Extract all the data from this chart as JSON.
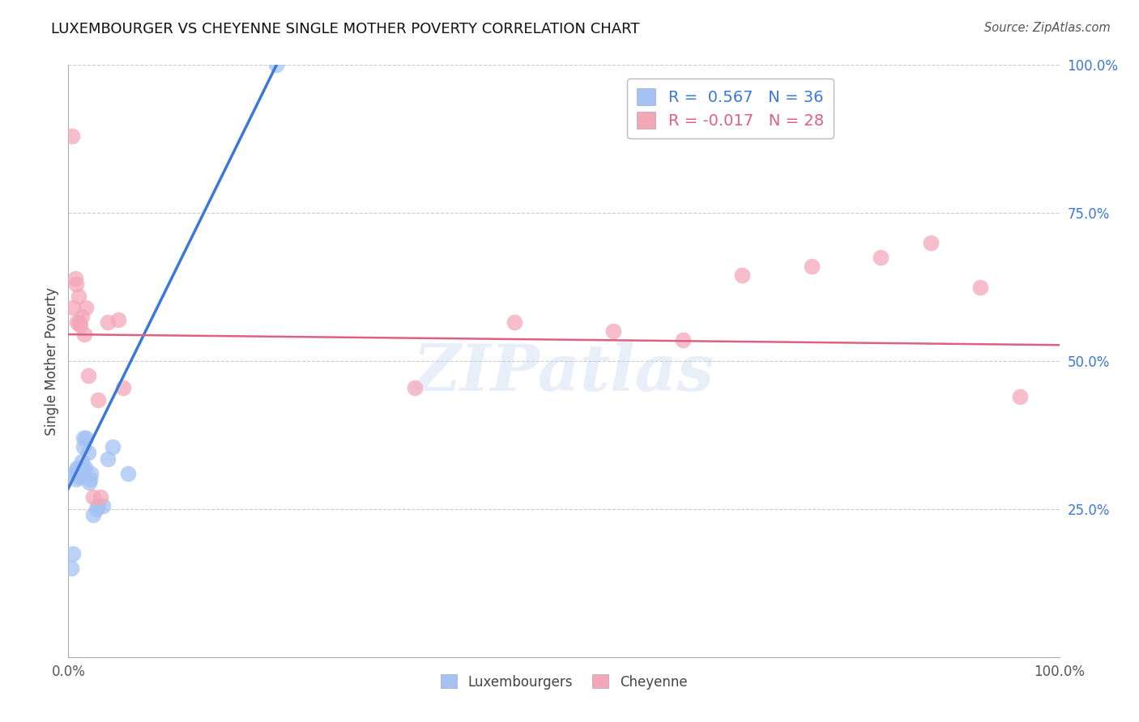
{
  "title": "LUXEMBOURGER VS CHEYENNE SINGLE MOTHER POVERTY CORRELATION CHART",
  "source": "Source: ZipAtlas.com",
  "ylabel": "Single Mother Poverty",
  "xlim": [
    0,
    1
  ],
  "ylim": [
    0,
    1
  ],
  "ytick_positions_right": [
    0.25,
    0.5,
    0.75,
    1.0
  ],
  "ytick_labels_right": [
    "25.0%",
    "50.0%",
    "75.0%",
    "100.0%"
  ],
  "legend_blue_label": "R =  0.567   N = 36",
  "legend_pink_label": "R = -0.017   N = 28",
  "blue_color": "#a4c2f4",
  "pink_color": "#f4a7b9",
  "blue_line_color": "#3c78d8",
  "pink_line_color": "#e06080",
  "watermark_text": "ZIPatlas",
  "blue_scatter_x": [
    0.003,
    0.005,
    0.007,
    0.008,
    0.008,
    0.009,
    0.01,
    0.01,
    0.01,
    0.011,
    0.011,
    0.012,
    0.012,
    0.012,
    0.013,
    0.013,
    0.013,
    0.014,
    0.014,
    0.015,
    0.015,
    0.016,
    0.017,
    0.018,
    0.02,
    0.021,
    0.022,
    0.023,
    0.025,
    0.028,
    0.03,
    0.035,
    0.04,
    0.045,
    0.06,
    0.21
  ],
  "blue_scatter_y": [
    0.15,
    0.175,
    0.31,
    0.315,
    0.3,
    0.32,
    0.315,
    0.31,
    0.305,
    0.32,
    0.315,
    0.32,
    0.315,
    0.32,
    0.32,
    0.315,
    0.31,
    0.32,
    0.33,
    0.355,
    0.37,
    0.315,
    0.32,
    0.37,
    0.345,
    0.295,
    0.3,
    0.31,
    0.24,
    0.25,
    0.255,
    0.255,
    0.335,
    0.355,
    0.31,
    1.0
  ],
  "pink_scatter_x": [
    0.004,
    0.005,
    0.007,
    0.008,
    0.009,
    0.01,
    0.011,
    0.012,
    0.014,
    0.016,
    0.018,
    0.02,
    0.025,
    0.03,
    0.032,
    0.04,
    0.05,
    0.055,
    0.35,
    0.45,
    0.55,
    0.62,
    0.68,
    0.75,
    0.82,
    0.87,
    0.92,
    0.96
  ],
  "pink_scatter_y": [
    0.88,
    0.59,
    0.64,
    0.63,
    0.565,
    0.61,
    0.565,
    0.56,
    0.575,
    0.545,
    0.59,
    0.475,
    0.27,
    0.435,
    0.27,
    0.565,
    0.57,
    0.455,
    0.455,
    0.565,
    0.55,
    0.535,
    0.645,
    0.66,
    0.675,
    0.7,
    0.625,
    0.44
  ],
  "blue_trendline_x": [
    0.0,
    0.21
  ],
  "blue_trendline_y": [
    0.285,
    1.0
  ],
  "pink_trendline_x": [
    0.0,
    1.0
  ],
  "pink_trendline_y": [
    0.545,
    0.527
  ]
}
